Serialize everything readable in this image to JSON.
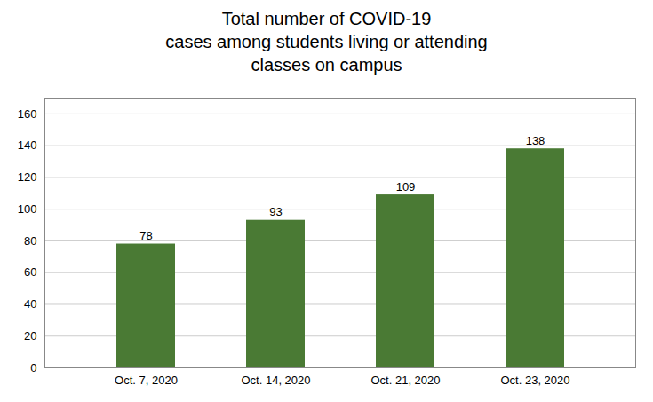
{
  "chart_data": {
    "type": "bar",
    "title": "Total number of COVID-19\ncases among students living or attending\nclasses on campus",
    "categories": [
      "Oct. 7, 2020",
      "Oct. 14, 2020",
      "Oct. 21, 2020",
      "Oct. 23, 2020"
    ],
    "values": [
      78,
      93,
      109,
      138
    ],
    "color": "#4a7a34",
    "ylim": [
      0,
      170
    ],
    "yticks": [
      0,
      20,
      40,
      60,
      80,
      100,
      120,
      140,
      160
    ],
    "grid": true,
    "data_labels": true
  }
}
